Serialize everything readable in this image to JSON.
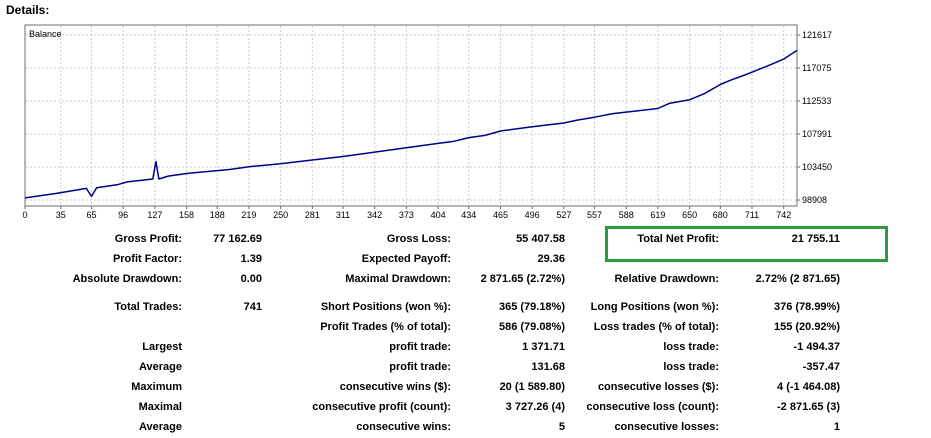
{
  "header": {
    "title": "Details:"
  },
  "highlight_color": "#2a9d3f",
  "chart_data": {
    "type": "line",
    "title": "Balance",
    "x_ticks": [
      "0",
      "35",
      "65",
      "96",
      "127",
      "158",
      "188",
      "219",
      "250",
      "281",
      "311",
      "342",
      "373",
      "404",
      "434",
      "465",
      "496",
      "527",
      "557",
      "588",
      "619",
      "650",
      "680",
      "711",
      "742"
    ],
    "y_ticks": [
      "121617",
      "117075",
      "112533",
      "107991",
      "103450",
      "98908"
    ],
    "xlim": [
      0,
      755
    ],
    "ylim": [
      98908,
      121617
    ],
    "grid": true,
    "series": [
      {
        "color": "#00008b",
        "x": [
          0,
          30,
          60,
          65,
          70,
          90,
          100,
          125,
          128,
          131,
          140,
          160,
          200,
          220,
          250,
          280,
          311,
          342,
          373,
          404,
          420,
          434,
          450,
          465,
          496,
          527,
          540,
          557,
          575,
          588,
          619,
          630,
          650,
          665,
          680,
          690,
          700,
          711,
          725,
          742,
          755
        ],
        "y": [
          99200,
          99800,
          100500,
          99400,
          100600,
          101000,
          101400,
          101800,
          104200,
          101800,
          102200,
          102600,
          103100,
          103500,
          103900,
          104400,
          104900,
          105500,
          106100,
          106700,
          107000,
          107500,
          107800,
          108400,
          109000,
          109500,
          109900,
          110300,
          110800,
          111000,
          111500,
          112200,
          112700,
          113600,
          114800,
          115400,
          115900,
          116500,
          117300,
          118300,
          119500
        ]
      }
    ]
  },
  "stats": {
    "gross_profit": {
      "label": "Gross Profit:",
      "value": "77 162.69"
    },
    "gross_loss": {
      "label": "Gross Loss:",
      "value": "55 407.58"
    },
    "total_net_profit": {
      "label": "Total Net Profit:",
      "value": "21 755.11"
    },
    "profit_factor": {
      "label": "Profit Factor:",
      "value": "1.39"
    },
    "expected_payoff": {
      "label": "Expected Payoff:",
      "value": "29.36"
    },
    "absolute_drawdown": {
      "label": "Absolute Drawdown:",
      "value": "0.00"
    },
    "maximal_drawdown": {
      "label": "Maximal Drawdown:",
      "value": "2 871.65 (2.72%)"
    },
    "relative_drawdown": {
      "label": "Relative Drawdown:",
      "value": "2.72% (2 871.65)"
    },
    "total_trades": {
      "label": "Total Trades:",
      "value": "741"
    },
    "short_positions": {
      "label": "Short Positions (won %):",
      "value": "365 (79.18%)"
    },
    "long_positions": {
      "label": "Long Positions (won %):",
      "value": "376 (78.99%)"
    },
    "profit_trades": {
      "label": "Profit Trades (% of total):",
      "value": "586 (79.08%)"
    },
    "loss_trades": {
      "label": "Loss trades (% of total):",
      "value": "155 (20.92%)"
    },
    "largest": {
      "label": "Largest",
      "profit_label": "profit trade:",
      "profit_value": "1 371.71",
      "loss_label": "loss trade:",
      "loss_value": "-1 494.37"
    },
    "average": {
      "label": "Average",
      "profit_label": "profit trade:",
      "profit_value": "131.68",
      "loss_label": "loss trade:",
      "loss_value": "-357.47"
    },
    "maximum": {
      "label": "Maximum",
      "profit_label": "consecutive wins ($):",
      "profit_value": "20 (1 589.80)",
      "loss_label": "consecutive losses ($):",
      "loss_value": "4 (-1 464.08)"
    },
    "maximal": {
      "label": "Maximal",
      "profit_label": "consecutive profit (count):",
      "profit_value": "3 727.26 (4)",
      "loss_label": "consecutive loss (count):",
      "loss_value": "-2 871.65 (3)"
    },
    "average_consec": {
      "label": "Average",
      "profit_label": "consecutive wins:",
      "profit_value": "5",
      "loss_label": "consecutive losses:",
      "loss_value": "1"
    }
  }
}
